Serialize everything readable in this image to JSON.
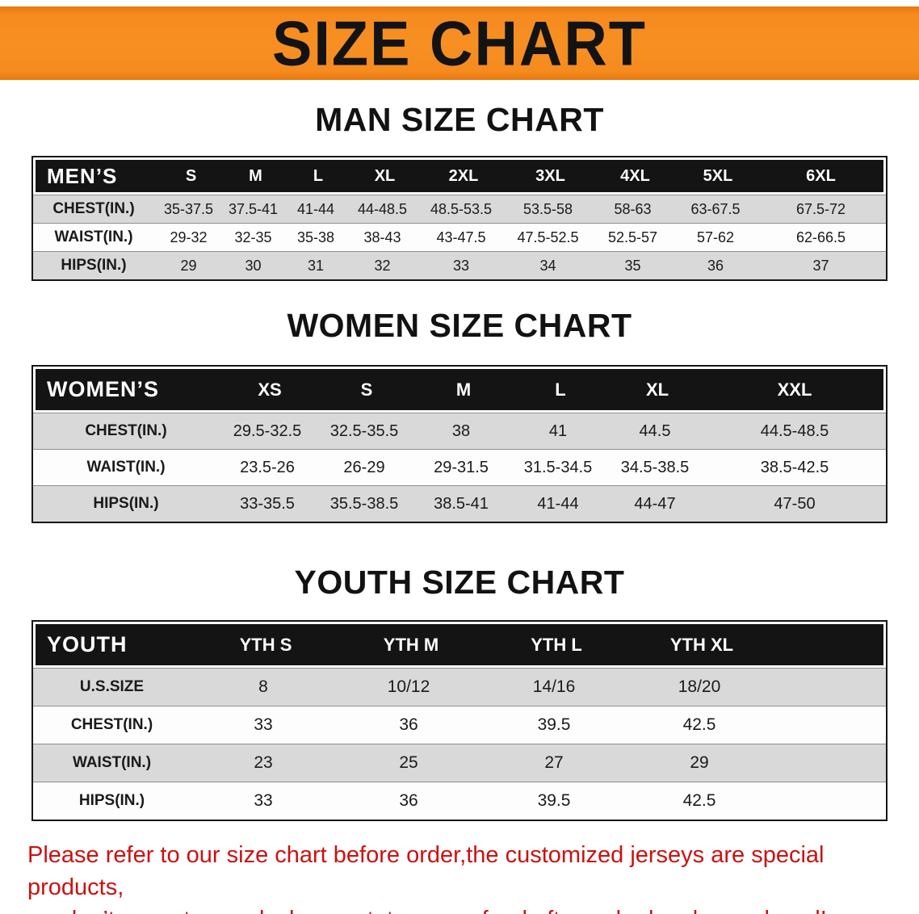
{
  "banner": {
    "title": "SIZE CHART"
  },
  "men": {
    "heading": "MAN SIZE CHART",
    "header": [
      "MEN’S",
      "S",
      "M",
      "L",
      "XL",
      "2XL",
      "3XL",
      "4XL",
      "5XL",
      "6XL"
    ],
    "rows": [
      [
        "CHEST(IN.)",
        "35-37.5",
        "37.5-41",
        "41-44",
        "44-48.5",
        "48.5-53.5",
        "53.5-58",
        "58-63",
        "63-67.5",
        "67.5-72"
      ],
      [
        "WAIST(IN.)",
        "29-32",
        "32-35",
        "35-38",
        "38-43",
        "43-47.5",
        "47.5-52.5",
        "52.5-57",
        "57-62",
        "62-66.5"
      ],
      [
        "HIPS(IN.)",
        "29",
        "30",
        "31",
        "32",
        "33",
        "34",
        "35",
        "36",
        "37"
      ]
    ]
  },
  "women": {
    "heading": "WOMEN SIZE CHART",
    "header": [
      "WOMEN’S",
      "XS",
      "S",
      "M",
      "L",
      "XL",
      "XXL"
    ],
    "rows": [
      [
        "CHEST(IN.)",
        "29.5-32.5",
        "32.5-35.5",
        "38",
        "41",
        "44.5",
        "44.5-48.5"
      ],
      [
        "WAIST(IN.)",
        "23.5-26",
        "26-29",
        "29-31.5",
        "31.5-34.5",
        "34.5-38.5",
        "38.5-42.5"
      ],
      [
        "HIPS(IN.)",
        "33-35.5",
        "35.5-38.5",
        "38.5-41",
        "41-44",
        "44-47",
        "47-50"
      ]
    ]
  },
  "youth": {
    "heading": "YOUTH SIZE CHART",
    "header": [
      "YOUTH",
      "YTH S",
      "YTH M",
      "YTH L",
      "YTH XL"
    ],
    "rows": [
      [
        "U.S.SIZE",
        "8",
        "10/12",
        "14/16",
        "18/20"
      ],
      [
        "CHEST(IN.)",
        "33",
        "36",
        "39.5",
        "42.5"
      ],
      [
        "WAIST(IN.)",
        "23",
        "25",
        "27",
        "29"
      ],
      [
        "HIPS(IN.)",
        "33",
        "36",
        "39.5",
        "42.5"
      ]
    ]
  },
  "disclaimer": {
    "line1": "Please refer to our size chart before order,the customized jerseys are special products,",
    "line2": "we don’t accept cancel, change, teturn or refund after order has been placed!"
  },
  "colors": {
    "banner_orange": "#f68b1f",
    "header_black": "#141414",
    "row_gray": "#d9d9d9",
    "disclaimer_red": "#cc1111"
  }
}
